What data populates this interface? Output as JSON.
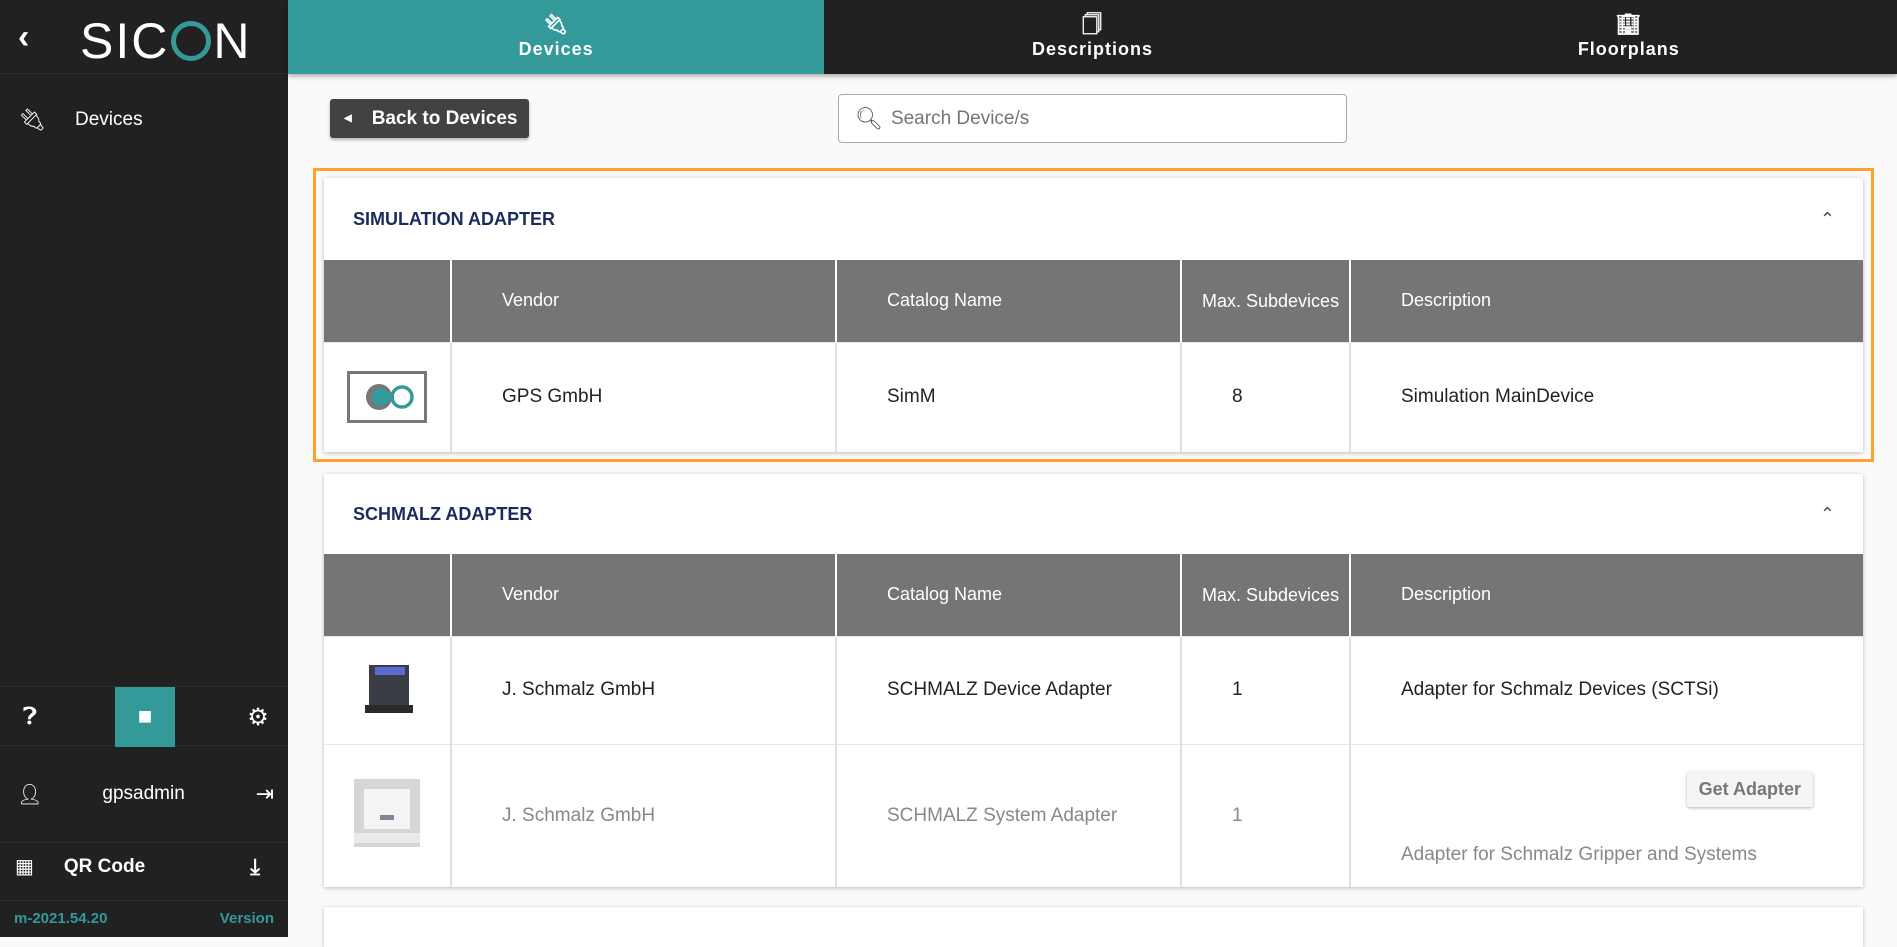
{
  "sidebar": {
    "logo": "SICON",
    "items": [
      {
        "label": "Devices",
        "icon": "plug-icon"
      }
    ],
    "user": "gpsadmin",
    "qr_label": "QR Code",
    "version_number": "m-2021.54.20",
    "version_label": "Version"
  },
  "tabs": [
    {
      "label": "Devices",
      "icon": "plug-icon",
      "active": true
    },
    {
      "label": "Descriptions",
      "icon": "file-copy-icon",
      "active": false
    },
    {
      "label": "Floorplans",
      "icon": "building-icon",
      "active": false
    }
  ],
  "toolbar": {
    "back_label": "Back to Devices",
    "search_placeholder": "Search Device/s"
  },
  "columns": [
    "",
    "Vendor",
    "Catalog Name",
    "Max. Subdevices",
    "Description"
  ],
  "groups": [
    {
      "title": "SIMULATION ADAPTER",
      "rows": [
        {
          "vendor": "GPS GmbH",
          "catalog": "SimM",
          "max": "8",
          "description": "Simulation MainDevice"
        }
      ]
    },
    {
      "title": "SCHMALZ ADAPTER",
      "rows": [
        {
          "vendor": "J. Schmalz GmbH",
          "catalog": "SCHMALZ Device Adapter",
          "max": "1",
          "description": "Adapter for Schmalz Devices (SCTSi)"
        },
        {
          "vendor": "J. Schmalz GmbH",
          "catalog": "SCHMALZ System Adapter",
          "max": "1",
          "description": "Adapter for Schmalz Gripper and Systems",
          "action": "Get Adapter"
        }
      ]
    }
  ],
  "colors": {
    "accent": "#339999",
    "sidebar": "#212121",
    "highlight": "#ffa12e",
    "header": "#757575"
  }
}
